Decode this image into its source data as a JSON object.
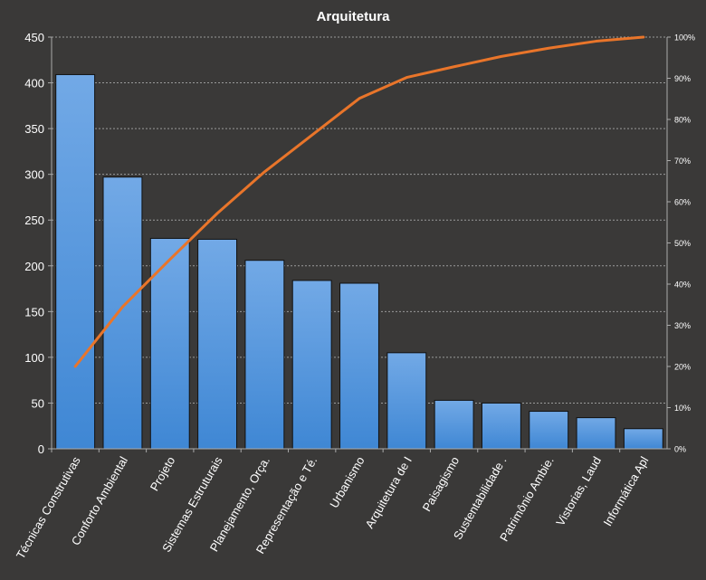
{
  "chart_data": {
    "type": "bar",
    "title": "Arquitetura",
    "categories": [
      "Técnicas Construtivas",
      "Conforto Ambiental",
      "Projeto",
      "Sistemas Estruturais",
      "Planejamento, Orça.",
      "Representação e Té.",
      "Urbanismo",
      "Arquitetura de I",
      "Paisagismo",
      "Sustentabilidade .",
      "Patrimônio Ambie.",
      "Vistorias, Laud",
      "Informática Apl"
    ],
    "series": [
      {
        "type": "bar",
        "axis": "left",
        "values": [
          409,
          297,
          230,
          229,
          206,
          184,
          181,
          105,
          53,
          50,
          41,
          34,
          22
        ]
      },
      {
        "type": "line",
        "axis": "right",
        "values": [
          0.2,
          0.345,
          0.46,
          0.572,
          0.673,
          0.762,
          0.851,
          0.902,
          0.928,
          0.953,
          0.973,
          0.99,
          1.0
        ]
      }
    ],
    "ylim": [
      0,
      450
    ],
    "yticks": [
      "0",
      "50",
      "100",
      "150",
      "200",
      "250",
      "300",
      "350",
      "400",
      "450"
    ],
    "y2lim": [
      0,
      1
    ],
    "y2ticks": [
      "0%",
      "10%",
      "20%",
      "30%",
      "40%",
      "50%",
      "60%",
      "70%",
      "80%",
      "90%",
      "100%"
    ],
    "grid": true,
    "legend": "none",
    "colors": {
      "background": "#3a3938",
      "bar_top": "#72a9e6",
      "bar_bottom": "#3f87d4",
      "bar_edge": "#111111",
      "line": "#e9752a",
      "grid": "#9a9a9a",
      "text": "#ffffff"
    }
  }
}
